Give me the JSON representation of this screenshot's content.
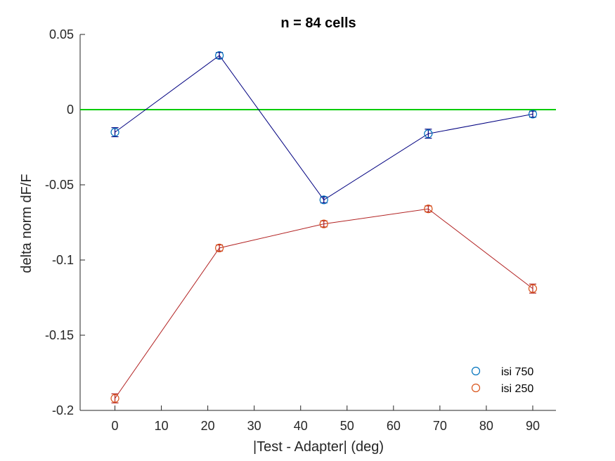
{
  "chart_data": {
    "type": "line",
    "title": "n = 84 cells",
    "xlabel": "|Test - Adapter| (deg)",
    "ylabel": "delta norm dF/F",
    "xlim": [
      -7.5,
      95
    ],
    "ylim": [
      -0.2,
      0.05
    ],
    "xticks": [
      0,
      10,
      20,
      30,
      40,
      50,
      60,
      70,
      80,
      90
    ],
    "yticks": [
      -0.2,
      -0.15,
      -0.1,
      -0.05,
      0,
      0.05
    ],
    "ytick_labels": [
      "-0.2",
      "-0.15",
      "-0.1",
      "-0.05",
      "0",
      "0.05"
    ],
    "x": [
      0,
      22.5,
      45,
      67.5,
      90
    ],
    "series": [
      {
        "name": "isi 750",
        "values": [
          -0.015,
          0.036,
          -0.06,
          -0.016,
          -0.003
        ],
        "errors": [
          0.003,
          0.002,
          0.002,
          0.003,
          0.002
        ],
        "marker_color": "#0072BD",
        "line_color": "#000080"
      },
      {
        "name": "isi 250",
        "values": [
          -0.192,
          -0.092,
          -0.076,
          -0.066,
          -0.119
        ],
        "errors": [
          0.003,
          0.002,
          0.002,
          0.002,
          0.003
        ],
        "marker_color": "#D95319",
        "line_color": "#B22222"
      }
    ],
    "reference_line": {
      "y": 0,
      "color": "#00CC00"
    },
    "grid": false,
    "legend_position": "bottom-right"
  }
}
